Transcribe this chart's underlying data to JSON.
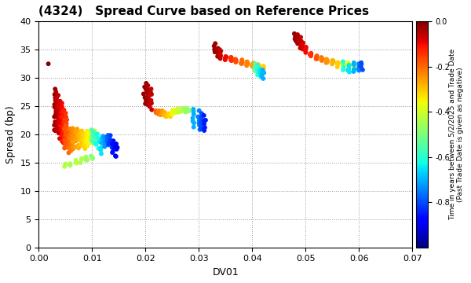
{
  "title": "(4324)   Spread Curve based on Reference Prices",
  "xlabel": "DV01",
  "ylabel": "Spread (bp)",
  "xlim": [
    0.0,
    0.07
  ],
  "ylim": [
    0,
    40
  ],
  "xticks": [
    0.0,
    0.01,
    0.02,
    0.03,
    0.04,
    0.05,
    0.06,
    0.07
  ],
  "yticks": [
    0,
    5,
    10,
    15,
    20,
    25,
    30,
    35,
    40
  ],
  "colorbar_label_line1": "Time in years between 5/2/2025 and Trade Date",
  "colorbar_label_line2": "(Past Trade Date is given as negative)",
  "colorbar_vmin": -1.0,
  "colorbar_vmax": 0.0,
  "colorbar_ticks": [
    0.0,
    -0.2,
    -0.4,
    -0.6,
    -0.8
  ],
  "background_color": "#ffffff",
  "grid_color": "#999999",
  "grid_style": "dotted",
  "marker_size": 18,
  "title_fontsize": 11,
  "axis_fontsize": 9,
  "tick_fontsize": 8
}
